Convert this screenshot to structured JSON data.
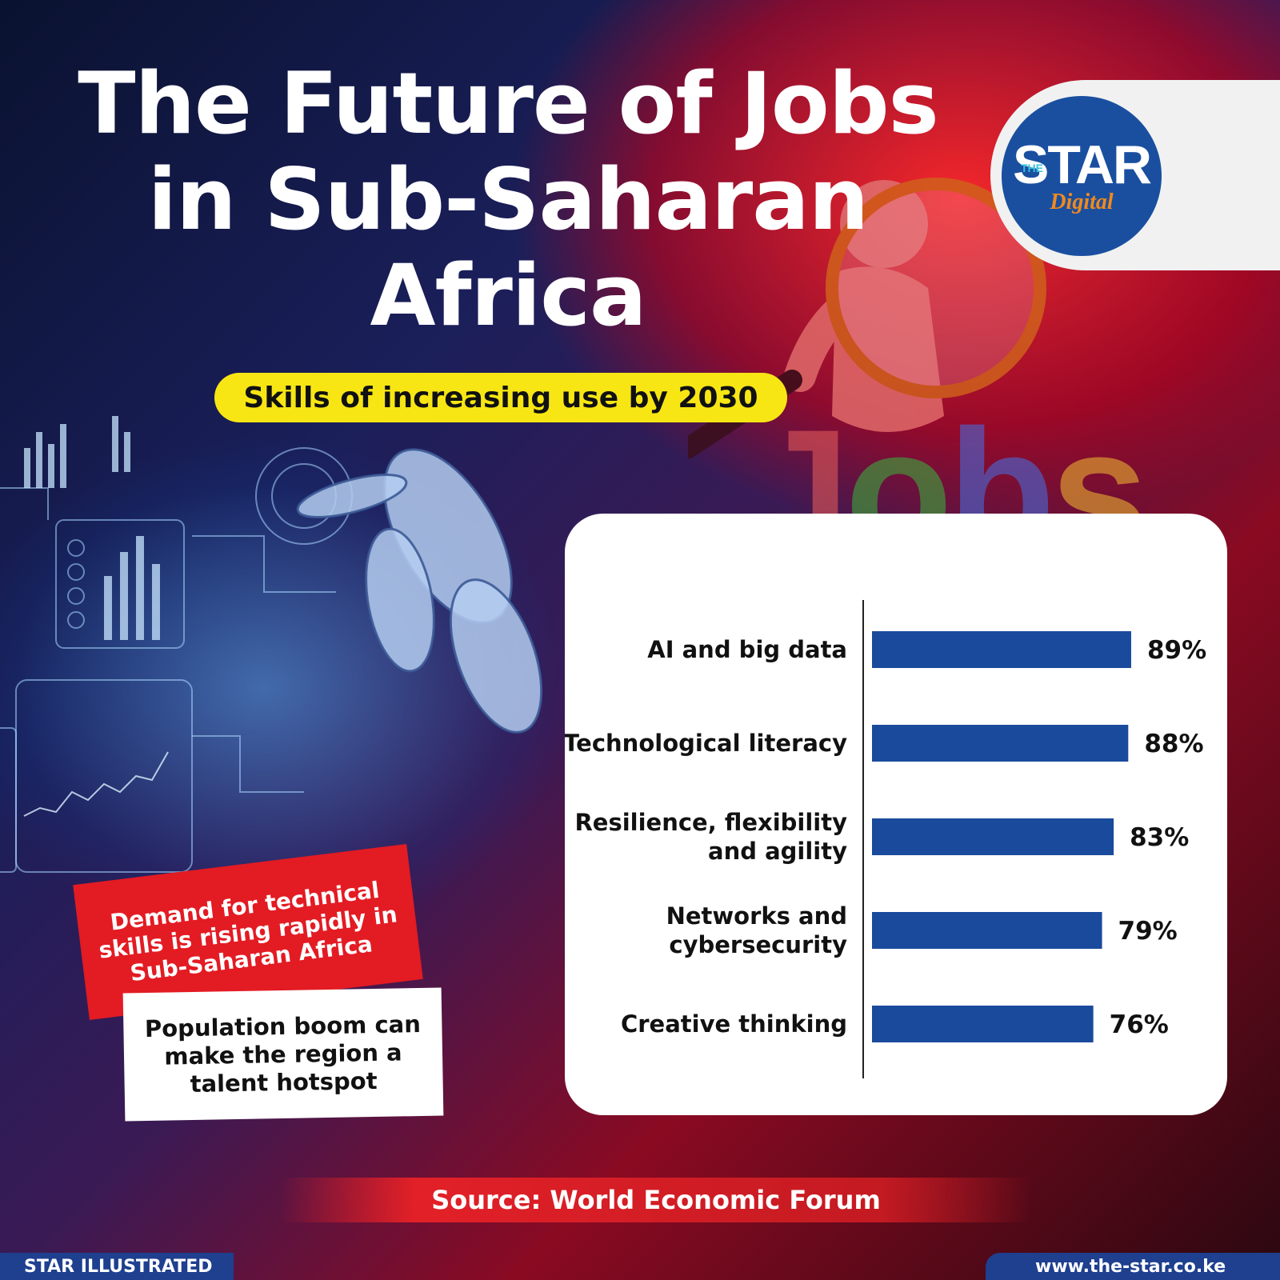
{
  "header": {
    "title": "The Future of Jobs\nin Sub-Saharan\nAfrica",
    "subtitle": "Skills of increasing use by 2030"
  },
  "logo": {
    "the": "THE",
    "star": "STAR",
    "digital": "Digital"
  },
  "illustration": {
    "jobs_word": "Jobs"
  },
  "callouts": {
    "red": "Demand for technical\nskills is rising rapidly in\nSub-Saharan Africa",
    "white": "Population boom can\nmake the region a\ntalent hotspot"
  },
  "source": "Source: World Economic Forum",
  "footer": {
    "left": "STAR ILLUSTRATED",
    "right": "www.the-star.co.ke"
  },
  "colors": {
    "bar": "#1a4a9c",
    "accent_red": "#e31b23",
    "pill_yellow": "#f7e614",
    "brand_blue": "#1f3f8f"
  },
  "chart_data": {
    "type": "bar",
    "orientation": "horizontal",
    "categories": [
      "AI and big data",
      "Technological literacy",
      "Resilience, flexibility\nand agility",
      "Networks and\ncybersecurity",
      "Creative thinking"
    ],
    "values": [
      89,
      88,
      83,
      79,
      76
    ],
    "value_labels": [
      "89%",
      "88%",
      "83%",
      "79%",
      "76%"
    ],
    "title": "Skills of increasing use by 2030",
    "xlabel": "",
    "ylabel": "",
    "xlim": [
      0,
      100
    ],
    "grid": false,
    "legend": "none"
  }
}
